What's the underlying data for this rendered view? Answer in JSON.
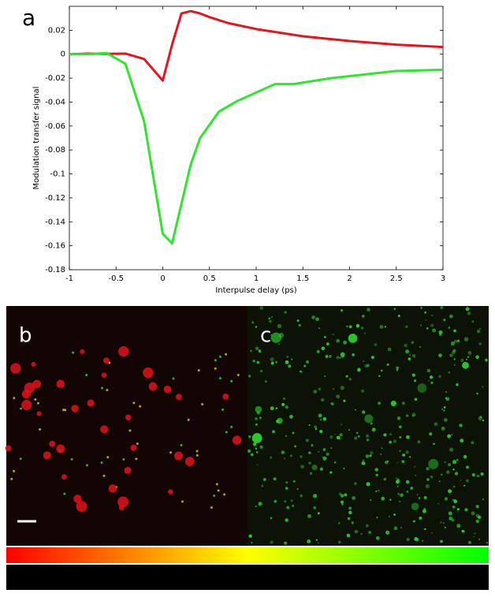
{
  "chart_data": {
    "type": "line",
    "panel_label": "a",
    "xlabel": "Interpulse delay (ps)",
    "ylabel": "Modulation transfer signal",
    "xlim": [
      -1,
      3
    ],
    "xticks": [
      -1,
      -0.5,
      0,
      0.5,
      1,
      1.5,
      2,
      2.5,
      3
    ],
    "ylim": [
      -0.18,
      0.04
    ],
    "yticks": [
      -0.18,
      -0.16,
      -0.14,
      -0.12,
      -0.1,
      -0.08,
      -0.06,
      -0.04,
      -0.02,
      0,
      0.02
    ],
    "series": [
      {
        "color": "#e8141b",
        "x": [
          -1,
          -0.8,
          -0.6,
          -0.4,
          -0.2,
          0,
          0.1,
          0.2,
          0.3,
          0.4,
          0.5,
          0.7,
          1,
          1.5,
          2,
          2.5,
          3
        ],
        "values": [
          0,
          0.0005,
          0.0003,
          0.0005,
          -0.004,
          -0.022,
          0.008,
          0.034,
          0.036,
          0.034,
          0.031,
          0.026,
          0.021,
          0.015,
          0.011,
          0.008,
          0.006
        ]
      },
      {
        "color": "#2de62d",
        "x": [
          -1,
          -0.8,
          -0.6,
          -0.4,
          -0.2,
          0,
          0.1,
          0.3,
          0.4,
          0.6,
          0.8,
          1,
          1.2,
          1.4,
          1.8,
          2.5,
          3
        ],
        "values": [
          0,
          0,
          0.001,
          -0.008,
          -0.056,
          -0.15,
          -0.158,
          -0.092,
          -0.07,
          -0.048,
          -0.039,
          -0.032,
          -0.025,
          -0.025,
          -0.02,
          -0.014,
          -0.013
        ]
      }
    ]
  },
  "panels": {
    "b": "b",
    "c": "c"
  }
}
